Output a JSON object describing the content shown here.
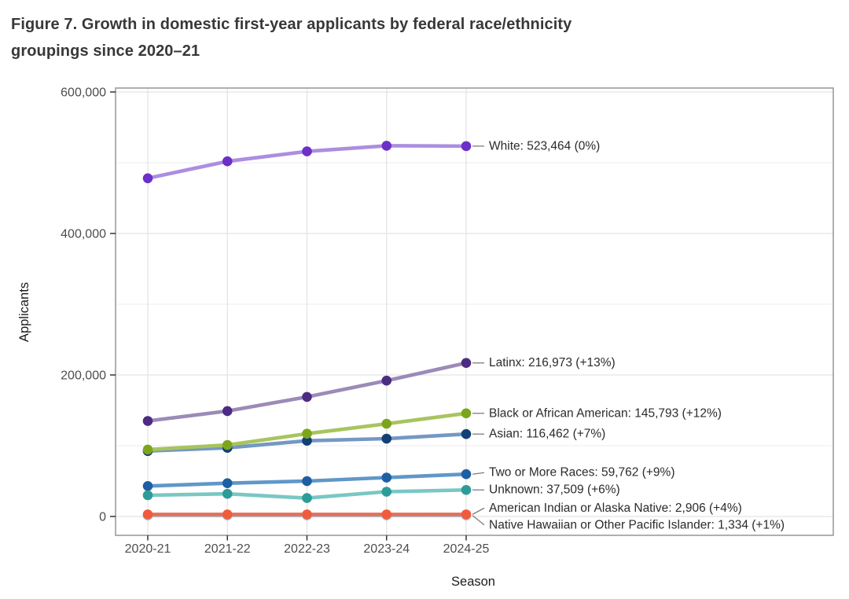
{
  "figure": {
    "title_line1": "Figure 7. Growth in domestic first-year applicants by federal race/ethnicity",
    "title_line2": "groupings since 2020–21"
  },
  "chart_data": {
    "type": "line",
    "title": "Figure 7. Growth in domestic first-year applicants by federal race/ethnicity groupings since 2020–21",
    "xlabel": "Season",
    "ylabel": "Applicants",
    "categories": [
      "2020-21",
      "2021-22",
      "2022-23",
      "2023-24",
      "2024-25"
    ],
    "ylim": [
      0,
      600000
    ],
    "y_major_ticks": [
      {
        "value": 0,
        "label": "0"
      },
      {
        "value": 200000,
        "label": "200,000"
      },
      {
        "value": 400000,
        "label": "400,000"
      },
      {
        "value": 600000,
        "label": "600,000"
      }
    ],
    "y_minor_ticks": [
      100000,
      300000,
      500000
    ],
    "grid": true,
    "legend_position": "right-annotations",
    "colors": {
      "grid_major": "#e4e4e4",
      "grid_minor": "#eeeeee",
      "panel_border": "#9d9d9d",
      "axis_tick": "#333333",
      "leader_line": "#7d7d7d"
    },
    "series": [
      {
        "name": "White",
        "annotation": "White: 523,464 (0%)",
        "final_value": 523464,
        "pct_change": "0%",
        "line_color": "#ac8ee0",
        "point_color": "#6c2fc7",
        "values": [
          478000,
          502000,
          516000,
          524000,
          523464
        ],
        "label_dy": 0
      },
      {
        "name": "Latinx",
        "annotation": "Latinx: 216,973 (+13%)",
        "final_value": 216973,
        "pct_change": "+13%",
        "line_color": "#9c8ab8",
        "point_color": "#4c2c82",
        "values": [
          135000,
          149000,
          169000,
          192000,
          216973
        ],
        "label_dy": 0
      },
      {
        "name": "Black or African American",
        "annotation": "Black or African American: 145,793 (+12%)",
        "final_value": 145793,
        "pct_change": "+12%",
        "line_color": "#a8c45e",
        "point_color": "#7ca51c",
        "values": [
          94500,
          101000,
          117000,
          131000,
          145793
        ],
        "label_dy": 0
      },
      {
        "name": "Asian",
        "annotation": "Asian: 116,462 (+7%)",
        "final_value": 116462,
        "pct_change": "+7%",
        "line_color": "#7498c2",
        "point_color": "#123f76",
        "values": [
          92500,
          97000,
          107000,
          110000,
          116462
        ],
        "label_dy": 0
      },
      {
        "name": "Two or More Races",
        "annotation": "Two or More Races: 59,762 (+9%)",
        "final_value": 59762,
        "pct_change": "+9%",
        "line_color": "#6097c8",
        "point_color": "#1e5fa4",
        "values": [
          43000,
          47000,
          50000,
          55000,
          59762
        ],
        "label_dy": -2
      },
      {
        "name": "Unknown",
        "annotation": "Unknown: 37,509 (+6%)",
        "final_value": 37509,
        "pct_change": "+6%",
        "line_color": "#7ac7c3",
        "point_color": "#2d9c98",
        "values": [
          30000,
          32000,
          26000,
          35000,
          37509
        ],
        "label_dy": 0
      },
      {
        "name": "American Indian or Alaska Native",
        "annotation": "American Indian or Alaska Native: 2,906 (+4%)",
        "final_value": 2906,
        "pct_change": "+4%",
        "line_color": "#e4705a",
        "point_color": "#f25a3c",
        "values": [
          2800,
          2800,
          2850,
          2800,
          2906
        ],
        "label_dy": -8
      },
      {
        "name": "Native Hawaiian or Other Pacific Islander",
        "annotation": "Native Hawaiian or Other Pacific Islander: 1,334 (+1%)",
        "final_value": 1334,
        "pct_change": "+1%",
        "line_color": "#a4c6d8",
        "point_color": "#a4c6d8",
        "values": [
          1300,
          1300,
          1300,
          1300,
          1334
        ],
        "label_dy": 12
      }
    ]
  }
}
